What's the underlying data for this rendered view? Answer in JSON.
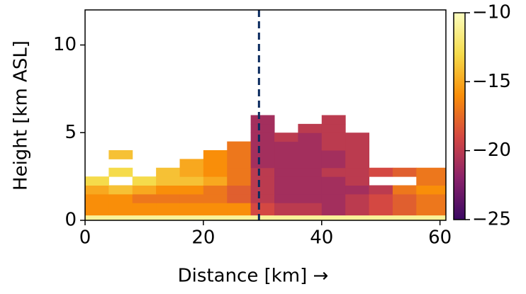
{
  "chart_data": {
    "type": "heatmap",
    "xlabel": "Distance [km] →",
    "ylabel": "Height [km ASL]",
    "xlim": [
      0,
      61
    ],
    "ylim": [
      0,
      12
    ],
    "xticks": [
      0,
      20,
      40,
      60
    ],
    "yticks": [
      0,
      5,
      10
    ],
    "x_edges": [
      0,
      4,
      8,
      12,
      16,
      20,
      24,
      28,
      32,
      36,
      40,
      44,
      48,
      52,
      56,
      61
    ],
    "y_edges": [
      0,
      0.3,
      1,
      1.5,
      2,
      2.5,
      3,
      3.5,
      4,
      4.5,
      5,
      5.5,
      6
    ],
    "z": [
      [
        -11,
        -11,
        -11,
        -11,
        -11,
        -11,
        -11,
        -11,
        -11,
        -11,
        -11,
        -11,
        -11,
        -11,
        -11
      ],
      [
        -16,
        -16,
        -16,
        -16,
        -16,
        -16,
        -16,
        -19,
        -20,
        -20,
        -21,
        -20,
        -19,
        -18,
        -17
      ],
      [
        -16,
        -16,
        -17,
        -17,
        -17,
        -17,
        -18,
        -20,
        -21,
        -21,
        -21,
        -20,
        -19,
        -18,
        -17
      ],
      [
        -15,
        -14,
        -15,
        -16,
        -16,
        -17,
        -18,
        -20,
        -21,
        -21,
        -21,
        -21,
        -20,
        -17,
        -16
      ],
      [
        -13,
        null,
        -13,
        -14,
        -14,
        -15,
        -17,
        -20,
        -21,
        -21,
        -21,
        -20,
        null,
        null,
        -17
      ],
      [
        null,
        -13,
        null,
        -14,
        -15,
        -16,
        -17,
        -20,
        -21,
        -21,
        -20,
        -20,
        -19,
        -18,
        -17
      ],
      [
        null,
        null,
        null,
        null,
        -15,
        -16,
        -17,
        -21,
        -21,
        -21,
        -21,
        -20,
        null,
        null,
        null
      ],
      [
        null,
        -14,
        null,
        null,
        null,
        -16,
        -17,
        -21,
        -21,
        -21,
        -21,
        -20,
        null,
        null,
        null
      ],
      [
        null,
        null,
        null,
        null,
        null,
        null,
        -17,
        -21,
        -21,
        -21,
        -20,
        -20,
        null,
        null,
        null
      ],
      [
        null,
        null,
        null,
        null,
        null,
        null,
        null,
        -21,
        -20,
        -21,
        -20,
        -20,
        null,
        null,
        null
      ],
      [
        null,
        null,
        null,
        null,
        null,
        null,
        null,
        -21,
        null,
        -20,
        -20,
        null,
        null,
        null,
        null
      ],
      [
        null,
        null,
        null,
        null,
        null,
        null,
        null,
        -21,
        null,
        null,
        -20,
        null,
        null,
        null,
        null
      ]
    ],
    "colormap": [
      "#3a0963",
      "#8a226a",
      "#d44842",
      "#f98e09",
      "#f5db4b",
      "#fcfdbf"
    ],
    "clim": [
      -25,
      -10
    ],
    "cticks": [
      {
        "value": -25,
        "label": "−25"
      },
      {
        "value": -20,
        "label": "−20"
      },
      {
        "value": -15,
        "label": "−15"
      },
      {
        "value": -10,
        "label": "−10"
      }
    ],
    "marker_x": 29.4,
    "marker_color": "#0a2a5e"
  }
}
